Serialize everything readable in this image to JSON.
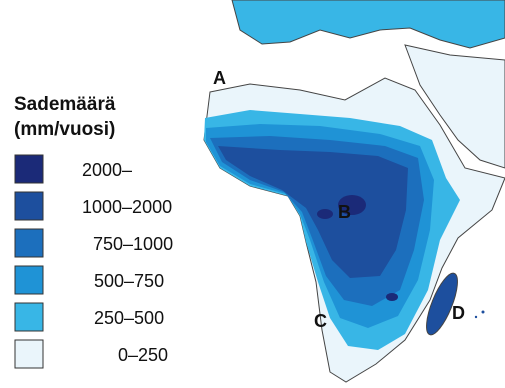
{
  "legend": {
    "title": "Sademäärä",
    "unit": "(mm/vuosi)",
    "items": [
      {
        "label": "2000–",
        "color": "#1b2a78"
      },
      {
        "label": "1000–2000",
        "color": "#1d4f9e"
      },
      {
        "label": "750–1000",
        "color": "#1c6fbd"
      },
      {
        "label": "500–750",
        "color": "#1f93d6"
      },
      {
        "label": "250–500",
        "color": "#38b6e6"
      },
      {
        "label": "0–250",
        "color": "#eaf5fb"
      }
    ]
  },
  "markers": [
    {
      "label": "A"
    },
    {
      "label": "B"
    },
    {
      "label": "C"
    },
    {
      "label": "D"
    }
  ]
}
